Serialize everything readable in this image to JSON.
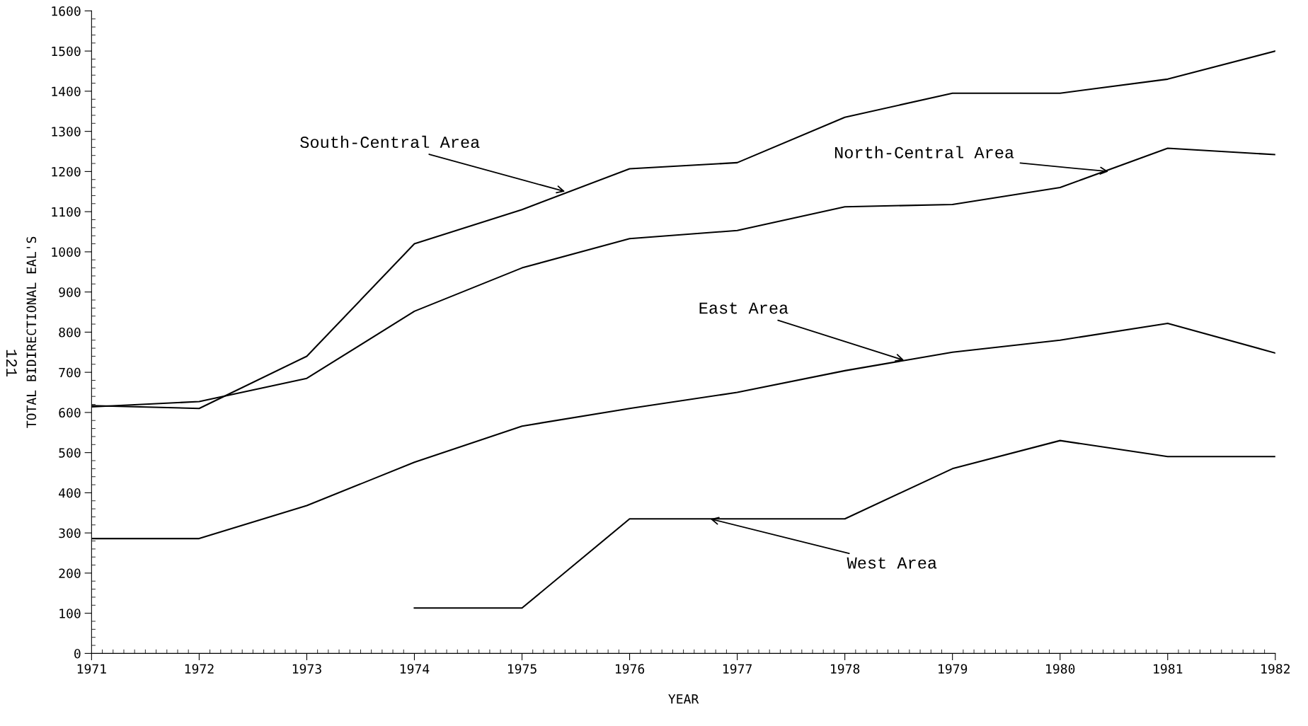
{
  "chart_data": {
    "type": "line",
    "xlabel": "YEAR",
    "ylabel": "TOTAL BIDIRECTIONAL EAL'S",
    "x": [
      1971,
      1972,
      1973,
      1974,
      1975,
      1976,
      1977,
      1978,
      1979,
      1980,
      1981,
      1982
    ],
    "series": [
      {
        "color": "#000000",
        "values": [
          617,
          610,
          740,
          1020,
          1105,
          1207,
          1222,
          1335,
          1395,
          1395,
          1430,
          1500
        ]
      },
      {
        "color": "#000000",
        "values": [
          614,
          627,
          685,
          852,
          960,
          1033,
          1053,
          1112,
          1118,
          1160,
          1258,
          1242
        ]
      },
      {
        "color": "#000000",
        "values": [
          286,
          286,
          368,
          476,
          566,
          610,
          650,
          704,
          750,
          780,
          822,
          748
        ]
      },
      {
        "color": "#000000",
        "values": [
          null,
          null,
          null,
          113,
          113,
          335,
          335,
          335,
          460,
          530,
          490,
          490
        ]
      }
    ],
    "annotations": [
      {
        "text": "South-Central Area",
        "x": 1975.4,
        "y": 1150
      },
      {
        "text": "North-Central Area",
        "x": 1980.45,
        "y": 1200
      },
      {
        "text": "East Area",
        "x": 1978.55,
        "y": 730
      },
      {
        "text": "West Area",
        "x": 1976.75,
        "y": 335
      },
      "121"
    ],
    "xlim": [
      1971,
      1982
    ],
    "xticks": [
      1971,
      1972,
      1973,
      1974,
      1975,
      1976,
      1977,
      1978,
      1979,
      1980,
      1981,
      1982
    ],
    "ylim": [
      0,
      1600
    ],
    "yticks": [
      0,
      100,
      200,
      300,
      400,
      500,
      600,
      700,
      800,
      900,
      1000,
      1100,
      1200,
      1300,
      1400,
      1500,
      1600
    ],
    "grid": false,
    "legend": false,
    "line_style": "solid"
  }
}
